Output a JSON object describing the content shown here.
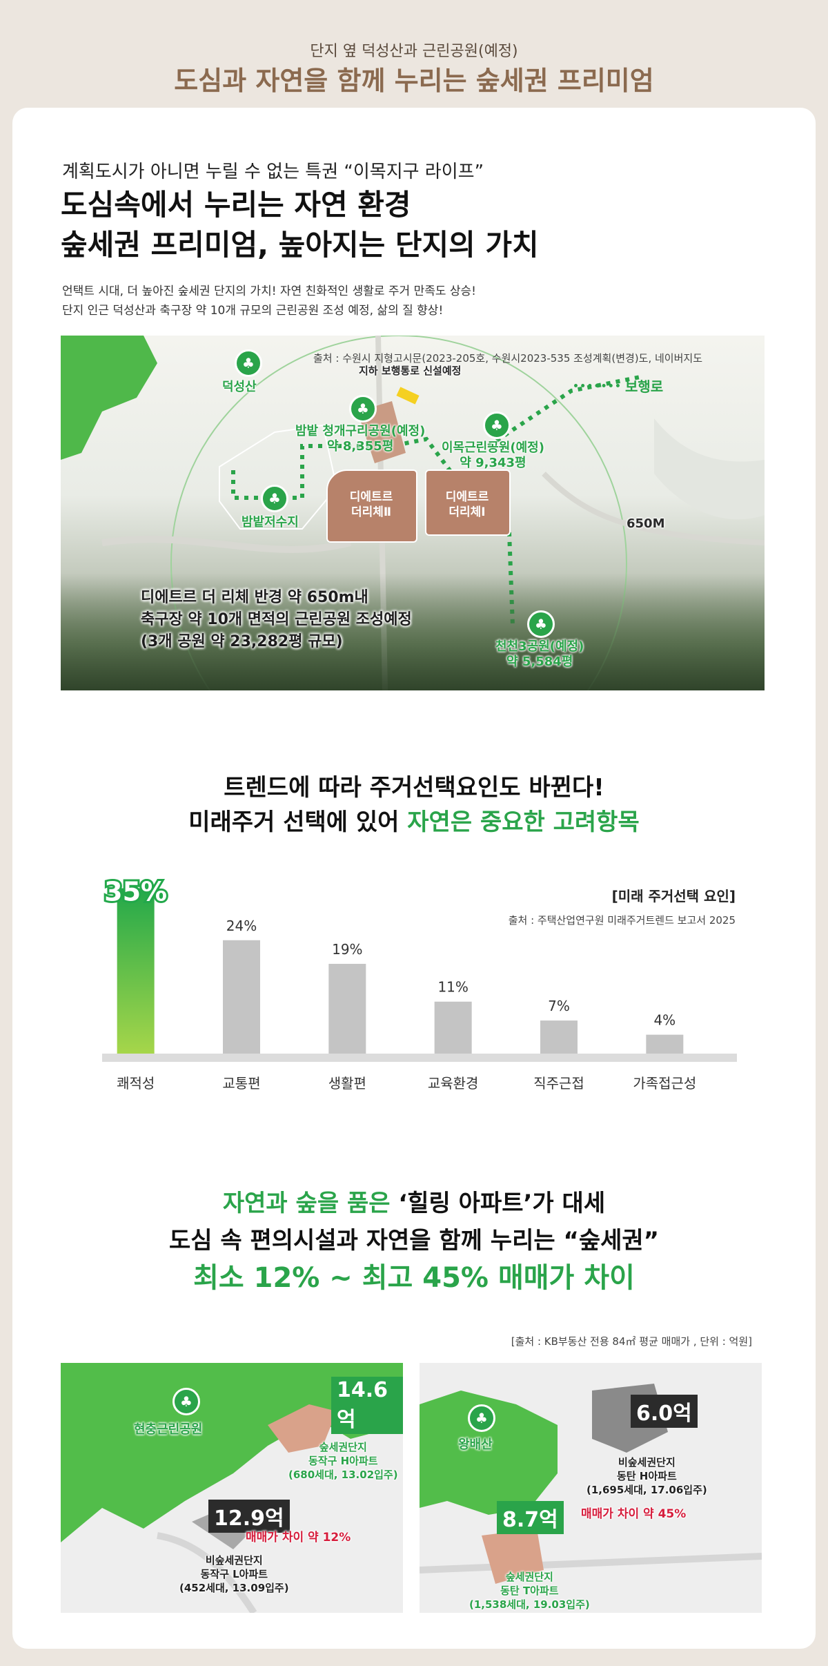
{
  "header": {
    "subtitle": "단지 옆 덕성산과 근린공원(예정)",
    "title": "도심과 자연을 함께 누리는 숲세권 프리미엄"
  },
  "section1": {
    "lead": "계획도시가 아니면 누릴 수 없는 특권 “이목지구 라이프”",
    "headline1": "도심속에서 누리는 자연 환경",
    "headline2": "숲세권 프리미엄, 높아지는 단지의 가치",
    "desc1": "언택트 시대, 더 높아진 숲세권 단지의 가치! 자연 친화적인 생활로 주거 만족도 상승!",
    "desc2": "단지 인근 덕성산과 축구장 약 10개  규모의 근린공원 조성 예정, 삶의 질 향상!",
    "map": {
      "source": "출처 : 수원시 지형고시문(2023-205호, 수원시2023-535 조성계획(변경)도, 네이버지도",
      "walkway_legend": "보행로",
      "underpass": "지하 보행통로 신설예정",
      "parks": [
        {
          "name": "덕성산",
          "area": ""
        },
        {
          "name": "밤밭 청개구리공원(예정)",
          "area": "약 8,355평"
        },
        {
          "name": "이목근린공원(예정)",
          "area": "약 9,343평"
        },
        {
          "name": "밤밭저수지",
          "area": ""
        },
        {
          "name": "천천3공원(예정)",
          "area": "약 5,584평"
        }
      ],
      "complex1": [
        "디에트르",
        "더리체Ⅱ"
      ],
      "complex2": [
        "디에트르",
        "더리체Ⅰ"
      ],
      "radius": "650M",
      "callout": [
        "디에트르 더 리체 반경 약 650m내",
        "축구장 약 10개 면적의 근린공원 조성예정",
        "(3개 공원 약 23,282평 규모)"
      ]
    }
  },
  "section2": {
    "heading1": "트렌드에 따라 주거선택요인도 바뀐다!",
    "heading2_prefix": "미래주거 선택에 있어 ",
    "heading2_highlight": "자연은 중요한 고려항목",
    "chart_title": "[미래  주거선택 요인]",
    "chart_source": "출처 : 주택산업연구원  미래주거트렌드 보고서 2025"
  },
  "chart_data": {
    "type": "bar",
    "title": "[미래  주거선택 요인]",
    "categories": [
      "쾌적성",
      "교통편",
      "생활편",
      "교육환경",
      "직주근접",
      "가족접근성"
    ],
    "values": [
      35,
      24,
      19,
      11,
      7,
      4
    ],
    "value_labels": [
      "35%",
      "24%",
      "19%",
      "11%",
      "7%",
      "4%"
    ],
    "highlight_color": "#3dbb4a",
    "bar_color": "#c4c4c4",
    "ylim": [
      0,
      38
    ]
  },
  "section3": {
    "line1_green": "자연과 숲을 품은 ",
    "line1_dark": "‘힐링 아파트’가 대세",
    "line2": "도심 속 편의시설과 자연을 함께 누리는 “숲세권”",
    "line3": "최소 12% ~ 최고 45% 매매가 차이",
    "source": "[출처 : KB부동산 전용 84㎡ 평균 매매가 ,  단위 : 억원]",
    "left": {
      "park": "현충근린공원",
      "forest_price": "14.6억",
      "forest_apt": [
        "숲세권단지",
        "동작구 H아파트",
        "(680세대, 13.02입주)"
      ],
      "other_price": "12.9억",
      "diff": "매매가 차이 약 12%",
      "other_apt": [
        "비숲세권단지",
        "동작구 L아파트",
        "(452세대, 13.09입주)"
      ]
    },
    "right": {
      "park": "왕배산",
      "other_price": "6.0억",
      "other_apt": [
        "비숲세권단지",
        "동탄 H아파트",
        "(1,695세대, 17.06입주)"
      ],
      "diff": "매매가 차이 약 45%",
      "forest_price": "8.7억",
      "forest_apt": [
        "숲세권단지",
        "동탄 T아파트",
        "(1,538세대, 19.03입주)"
      ]
    }
  }
}
